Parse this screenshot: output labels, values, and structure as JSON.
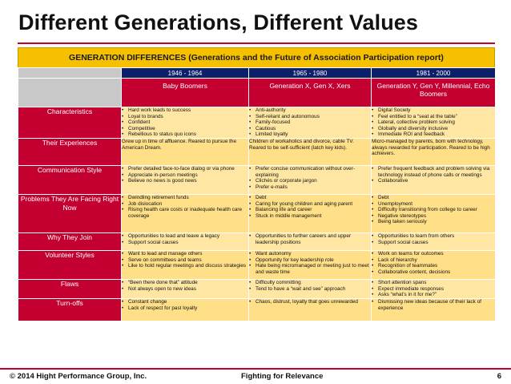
{
  "slide": {
    "title": "Different Generations, Different Values",
    "banner": "GENERATION DIFFERENCES (Generations and the Future of Association Participation report)"
  },
  "table": {
    "generations": [
      {
        "years": "1946 - 1964",
        "name": "Baby Boomers"
      },
      {
        "years": "1965 - 1980",
        "name": "Generation X, Gen X, Xers"
      },
      {
        "years": "1981 - 2000",
        "name": "Generation Y, Gen Y, Millennial, Echo Boomers"
      }
    ],
    "rows": [
      {
        "label": "Characteristics",
        "cells": [
          {
            "type": "list",
            "items": [
              "Hard work leads to success",
              "Loyal to brands",
              "Confident",
              "Competitive",
              "Rebellious to status quo icons"
            ]
          },
          {
            "type": "list",
            "items": [
              "Anti-authority",
              "Self-reliant and autonomous",
              "Family-focused",
              "Cautious",
              "Limited loyalty"
            ]
          },
          {
            "type": "list",
            "items": [
              "Digital Society",
              "Feel entitled to a “seat at the table”",
              "Lateral, collective problem solving",
              "Globally and diversity inclusive",
              "Immediate ROI and feedback"
            ]
          }
        ]
      },
      {
        "label": "Their Experiences",
        "cells": [
          {
            "type": "text",
            "text": "Grew up in time of affluence. Reared to pursue the American Dream."
          },
          {
            "type": "text",
            "text": "Children of workaholics and divorce, cable TV. Reared to be self-sufficient (latch key kids)."
          },
          {
            "type": "text",
            "text": "Micro-managed by parents, born with technology, always rewarded for participation. Reared to be high achievers."
          }
        ]
      },
      {
        "label": "Communication Style",
        "cells": [
          {
            "type": "list",
            "items": [
              "Prefer detailed face-to-face dialog or via phone",
              "Appreciate in-person meetings",
              "Believe no news is good news"
            ]
          },
          {
            "type": "list",
            "items": [
              "Prefer concise communication without over-explaining",
              "Clichés or corporate jargon",
              "Prefer e-mails"
            ]
          },
          {
            "type": "list",
            "items": [
              "Prefer frequent feedback and problem solving via technology instead of phone calls or meetings",
              "Collaborative"
            ]
          }
        ]
      },
      {
        "label": "Problems They Are Facing Right Now",
        "cells": [
          {
            "type": "list",
            "items": [
              "Dwindling retirement funds",
              "Job dislocation",
              "Rising health care costs or inadequate health care coverage"
            ]
          },
          {
            "type": "list",
            "items": [
              "Debt",
              "Caring for young children and aging parent",
              "Balancing life and career",
              "Stuck in middle management"
            ]
          },
          {
            "type": "list",
            "items": [
              "Debt",
              "Unemployment",
              "Difficulty transitioning from college to career",
              "Negative stereotypes",
              "Being taken seriously"
            ]
          }
        ]
      },
      {
        "label": "Why They Join",
        "cells": [
          {
            "type": "list",
            "items": [
              "Opportunities to lead and leave a legacy",
              "Support social causes"
            ]
          },
          {
            "type": "list",
            "items": [
              "Opportunities to further careers and upper leadership positions"
            ]
          },
          {
            "type": "list",
            "items": [
              "Opportunities to learn from others",
              "Support social causes"
            ]
          }
        ]
      },
      {
        "label": "Volunteer Styles",
        "cells": [
          {
            "type": "list",
            "items": [
              "Want to lead and manage others",
              "Serve on committees and teams",
              "Like to hold regular meetings and discuss strategies"
            ]
          },
          {
            "type": "list",
            "items": [
              "Want autonomy",
              "Opportunity for key leadership role",
              "Hate being micromanaged or meeting just to meet and waste time"
            ]
          },
          {
            "type": "list",
            "items": [
              "Work on teams for outcomes",
              "Lack of hierarchy",
              "Recognition of teammates",
              "Collaborative content, decisions"
            ]
          }
        ]
      },
      {
        "label": "Flaws",
        "cells": [
          {
            "type": "list",
            "items": [
              "“Been there done that” attitude",
              "Not always open to new ideas"
            ]
          },
          {
            "type": "list",
            "items": [
              "Difficulty committing",
              "Tend to have a “wait and see” approach"
            ]
          },
          {
            "type": "list",
            "items": [
              "Short attention spans",
              "Expect immediate responses",
              "Asks “what’s in it for me?”"
            ]
          }
        ]
      },
      {
        "label": "Turn-offs",
        "cells": [
          {
            "type": "list",
            "items": [
              "Constant change",
              "Lack of respect for past loyalty"
            ]
          },
          {
            "type": "list",
            "items": [
              "Chaos, distrust, loyalty that goes unrewarded"
            ]
          },
          {
            "type": "list",
            "items": [
              "Dismissing new ideas because of their lack of experience"
            ]
          }
        ]
      }
    ]
  },
  "footer": {
    "copyright": "© 2014 Hight Performance Group, Inc.",
    "center": "Fighting for Relevance",
    "page": "6"
  }
}
